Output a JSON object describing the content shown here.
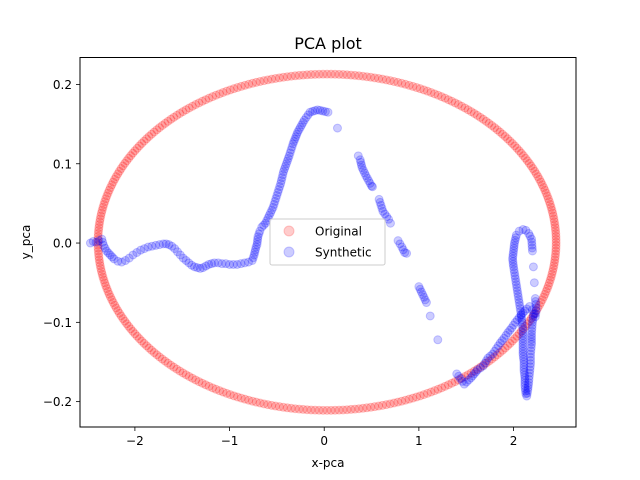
{
  "chart_data": {
    "type": "scatter",
    "title": "PCA plot",
    "xlabel": "x-pca",
    "ylabel": "y_pca",
    "xlim": [
      -2.58,
      2.66
    ],
    "ylim": [
      -0.232,
      0.234
    ],
    "x_ticks": [
      -2,
      -1,
      0,
      1,
      2
    ],
    "x_tick_labels": [
      "−2",
      "−1",
      "0",
      "1",
      "2"
    ],
    "y_ticks": [
      -0.2,
      -0.1,
      0.0,
      0.1,
      0.2
    ],
    "y_tick_labels": [
      "−0.2",
      "−0.1",
      "0.0",
      "0.1",
      "0.2"
    ],
    "grid": false,
    "legend": {
      "placement": "center",
      "entries": [
        "Original",
        "Synthetic"
      ]
    },
    "series": [
      {
        "name": "Original",
        "color": "#ff0000",
        "alpha": 0.2,
        "marker": "circle",
        "shape": "ellipse",
        "center": [
          0.03,
          0.001
        ],
        "x_radius": 2.42,
        "y_radius": 0.212,
        "count": 360
      },
      {
        "name": "Synthetic",
        "color": "#0000ff",
        "alpha": 0.2,
        "marker": "circle",
        "points": [
          [
            -2.47,
            0.0
          ],
          [
            -2.44,
            0.002
          ],
          [
            -2.41,
            0.001
          ],
          [
            -2.38,
            0.003
          ],
          [
            -2.35,
            0.005
          ],
          [
            -2.33,
            -0.003
          ],
          [
            -2.3,
            -0.01
          ],
          [
            -2.26,
            -0.015
          ],
          [
            -2.22,
            -0.02
          ],
          [
            -2.18,
            -0.023
          ],
          [
            -2.14,
            -0.024
          ],
          [
            -2.1,
            -0.022
          ],
          [
            -2.06,
            -0.019
          ],
          [
            -2.02,
            -0.015
          ],
          [
            -1.98,
            -0.012
          ],
          [
            -1.94,
            -0.009
          ],
          [
            -1.9,
            -0.007
          ],
          [
            -1.86,
            -0.005
          ],
          [
            -1.82,
            -0.004
          ],
          [
            -1.78,
            -0.003
          ],
          [
            -1.74,
            -0.002
          ],
          [
            -1.7,
            -0.001
          ],
          [
            -1.67,
            -0.001
          ],
          [
            -1.64,
            -0.002
          ],
          [
            -1.61,
            -0.004
          ],
          [
            -1.58,
            -0.007
          ],
          [
            -1.55,
            -0.011
          ],
          [
            -1.52,
            -0.015
          ],
          [
            -1.49,
            -0.019
          ],
          [
            -1.46,
            -0.022
          ],
          [
            -1.43,
            -0.025
          ],
          [
            -1.4,
            -0.028
          ],
          [
            -1.37,
            -0.03
          ],
          [
            -1.34,
            -0.031
          ],
          [
            -1.31,
            -0.032
          ],
          [
            -1.28,
            -0.031
          ],
          [
            -1.25,
            -0.029
          ],
          [
            -1.22,
            -0.027
          ],
          [
            -1.19,
            -0.026
          ],
          [
            -1.16,
            -0.025
          ],
          [
            -1.12,
            -0.025
          ],
          [
            -1.08,
            -0.026
          ],
          [
            -1.04,
            -0.026
          ],
          [
            -1.0,
            -0.027
          ],
          [
            -0.96,
            -0.027
          ],
          [
            -0.92,
            -0.027
          ],
          [
            -0.88,
            -0.026
          ],
          [
            -0.84,
            -0.025
          ],
          [
            -0.8,
            -0.024
          ],
          [
            -0.76,
            -0.022
          ],
          [
            -0.74,
            -0.015
          ],
          [
            -0.72,
            -0.005
          ],
          [
            -0.71,
            -0.002
          ],
          [
            -0.7,
            0.008
          ],
          [
            -0.68,
            0.015
          ],
          [
            -0.66,
            0.02
          ],
          [
            -0.62,
            0.025
          ],
          [
            -0.58,
            0.035
          ],
          [
            -0.54,
            0.045
          ],
          [
            -0.5,
            0.06
          ],
          [
            -0.46,
            0.075
          ],
          [
            -0.43,
            0.09
          ],
          [
            -0.4,
            0.1
          ],
          [
            -0.37,
            0.11
          ],
          [
            -0.33,
            0.125
          ],
          [
            -0.28,
            0.14
          ],
          [
            -0.21,
            0.155
          ],
          [
            -0.15,
            0.165
          ],
          [
            -0.07,
            0.168
          ],
          [
            0.04,
            0.165
          ],
          [
            0.14,
            0.145
          ],
          [
            0.36,
            0.11
          ],
          [
            0.38,
            0.105
          ],
          [
            0.4,
            0.095
          ],
          [
            0.44,
            0.085
          ],
          [
            0.5,
            0.072
          ],
          [
            0.51,
            0.071
          ],
          [
            0.58,
            0.055
          ],
          [
            0.62,
            0.04
          ],
          [
            0.68,
            0.03
          ],
          [
            0.7,
            0.025
          ],
          [
            0.78,
            0.003
          ],
          [
            0.82,
            -0.005
          ],
          [
            0.85,
            -0.012
          ],
          [
            0.87,
            -0.013
          ],
          [
            1.0,
            -0.055
          ],
          [
            1.04,
            -0.065
          ],
          [
            1.08,
            -0.075
          ],
          [
            1.12,
            -0.092
          ],
          [
            1.2,
            -0.122
          ],
          [
            1.4,
            -0.165
          ],
          [
            1.44,
            -0.171
          ],
          [
            1.48,
            -0.178
          ],
          [
            1.55,
            -0.17
          ],
          [
            1.62,
            -0.16
          ],
          [
            1.68,
            -0.155
          ],
          [
            1.73,
            -0.145
          ],
          [
            1.78,
            -0.14
          ],
          [
            1.82,
            -0.133
          ],
          [
            1.86,
            -0.126
          ],
          [
            1.9,
            -0.12
          ],
          [
            1.94,
            -0.113
          ],
          [
            1.98,
            -0.107
          ],
          [
            2.02,
            -0.1
          ],
          [
            2.06,
            -0.094
          ],
          [
            2.1,
            -0.088
          ],
          [
            2.14,
            -0.083
          ],
          [
            2.17,
            -0.08
          ],
          [
            2.2,
            -0.084
          ],
          [
            2.22,
            -0.089
          ],
          [
            2.23,
            -0.093
          ],
          [
            2.24,
            -0.085
          ],
          [
            2.23,
            -0.07
          ],
          [
            2.22,
            -0.05
          ],
          [
            2.21,
            -0.03
          ],
          [
            2.2,
            -0.01
          ],
          [
            2.19,
            0.005
          ],
          [
            2.16,
            0.012
          ],
          [
            2.13,
            0.016
          ],
          [
            2.1,
            0.017
          ],
          [
            2.06,
            0.015
          ],
          [
            2.03,
            0.01
          ],
          [
            2.01,
            0.0
          ],
          [
            2.0,
            -0.01
          ],
          [
            1.99,
            -0.02
          ],
          [
            2.0,
            -0.03
          ],
          [
            2.02,
            -0.045
          ],
          [
            2.04,
            -0.06
          ],
          [
            2.06,
            -0.075
          ],
          [
            2.08,
            -0.09
          ],
          [
            2.09,
            -0.1
          ],
          [
            2.1,
            -0.11
          ],
          [
            2.1,
            -0.12
          ],
          [
            2.1,
            -0.13
          ],
          [
            2.1,
            -0.14
          ],
          [
            2.11,
            -0.15
          ],
          [
            2.11,
            -0.16
          ],
          [
            2.12,
            -0.17
          ],
          [
            2.12,
            -0.18
          ],
          [
            2.13,
            -0.19
          ],
          [
            2.14,
            -0.193
          ],
          [
            2.15,
            -0.186
          ],
          [
            2.16,
            -0.176
          ],
          [
            2.17,
            -0.164
          ],
          [
            2.18,
            -0.152
          ],
          [
            2.18,
            -0.14
          ],
          [
            2.19,
            -0.128
          ],
          [
            2.19,
            -0.115
          ],
          [
            2.2,
            -0.1
          ],
          [
            2.21,
            -0.09
          ]
        ]
      }
    ]
  }
}
